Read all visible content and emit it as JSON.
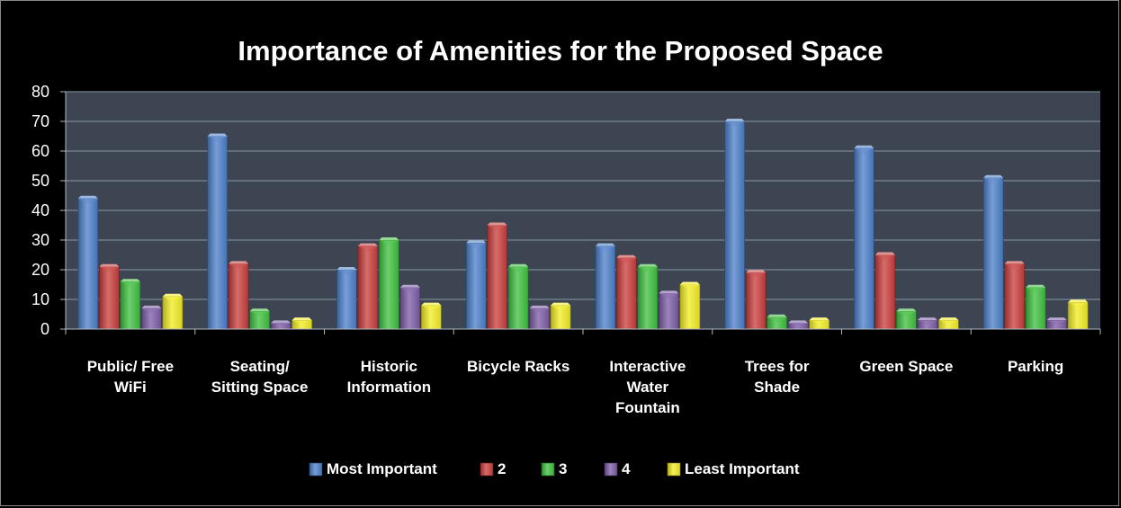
{
  "chart_data": {
    "type": "bar",
    "title": "Importance of Amenities for the Proposed Space",
    "xlabel": "",
    "ylabel": "",
    "ylim": [
      0,
      80
    ],
    "yticks": [
      0,
      10,
      20,
      30,
      40,
      50,
      60,
      70,
      80
    ],
    "grid": true,
    "legend_position": "bottom",
    "categories": [
      [
        "Public/ Free",
        "WiFi"
      ],
      [
        "Seating/",
        "Sitting Space"
      ],
      [
        "Historic",
        "Information"
      ],
      [
        "Bicycle Racks"
      ],
      [
        "Interactive",
        "Water",
        "Fountain"
      ],
      [
        "Trees for",
        "Shade"
      ],
      [
        "Green Space"
      ],
      [
        "Parking"
      ]
    ],
    "series": [
      {
        "name": "Most Important",
        "color": "#4a7ec8",
        "values": [
          44,
          65,
          20,
          29,
          28,
          70,
          61,
          51
        ]
      },
      {
        "name": "2",
        "color": "#c83c3a",
        "values": [
          21,
          22,
          28,
          35,
          24,
          19,
          25,
          22
        ]
      },
      {
        "name": "3",
        "color": "#3cbf3c",
        "values": [
          16,
          6,
          30,
          21,
          21,
          4,
          6,
          14
        ]
      },
      {
        "name": "4",
        "color": "#7b5aa6",
        "values": [
          7,
          2,
          14,
          7,
          12,
          2,
          3,
          3
        ]
      },
      {
        "name": "Least Important",
        "color": "#f2ec22",
        "values": [
          11,
          3,
          8,
          8,
          15,
          3,
          3,
          9
        ]
      }
    ],
    "colors": {
      "plot_background": "#3d4452",
      "gridline": "#8c96a6",
      "axis": "#b0b8c4"
    }
  }
}
